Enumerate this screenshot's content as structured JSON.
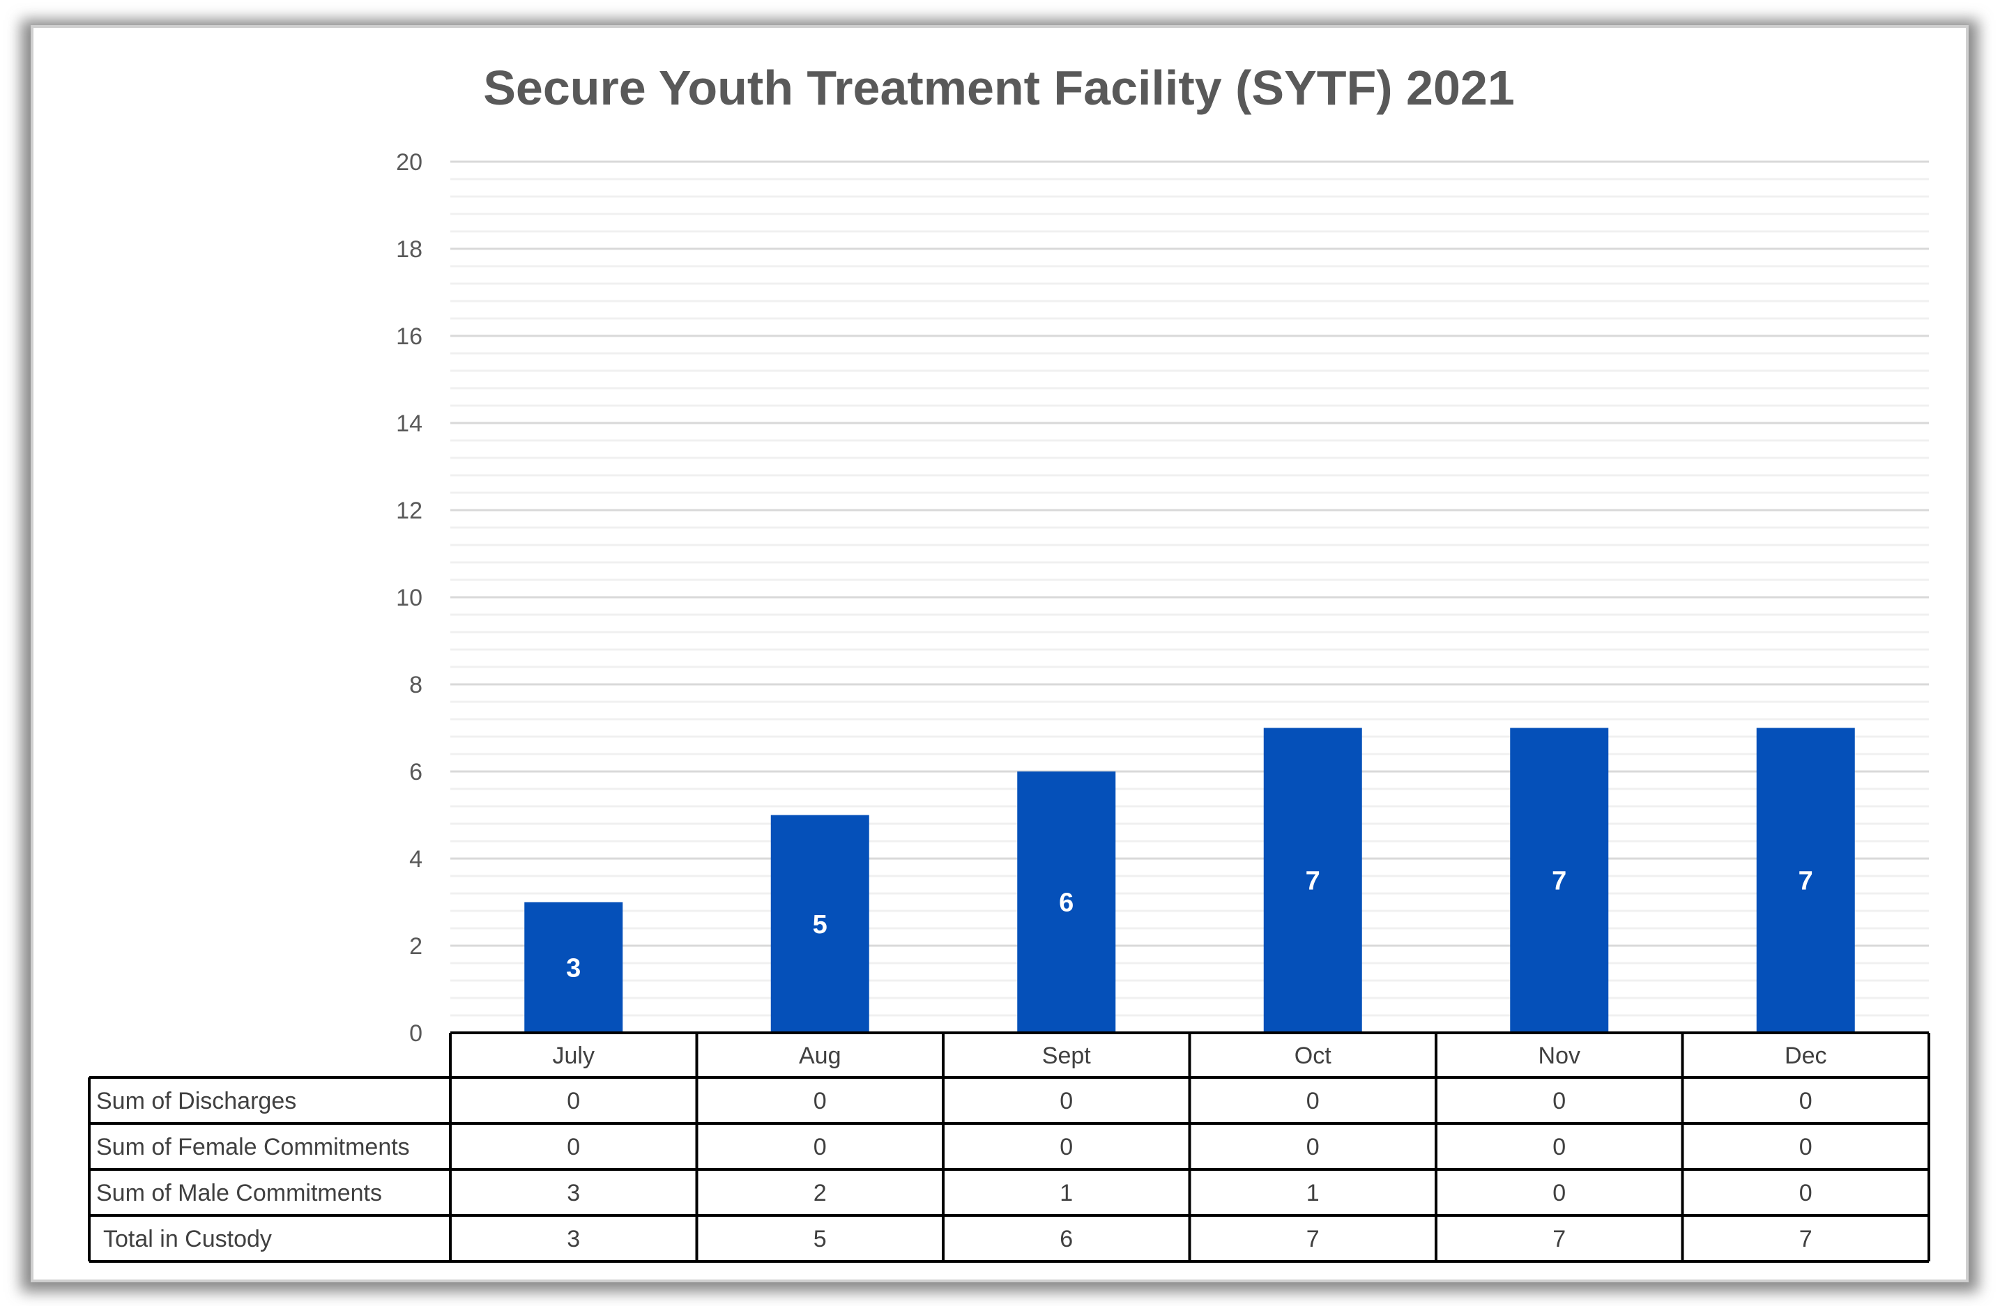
{
  "chart_data": {
    "type": "bar",
    "title": "Secure Youth Treatment Facility (SYTF) 2021",
    "categories": [
      "July",
      "Aug",
      "Sept",
      "Oct",
      "Nov",
      "Dec"
    ],
    "values": [
      3,
      5,
      6,
      7,
      7,
      7
    ],
    "ylim": [
      0,
      20
    ],
    "yticks": [
      "0",
      "2",
      "4",
      "6",
      "8",
      "10",
      "12",
      "14",
      "16",
      "18",
      "20"
    ],
    "grid": true,
    "bar_color": "#0550b9",
    "data_labels": true,
    "table": {
      "rows": [
        {
          "label": "Sum of Discharges",
          "values": [
            "0",
            "0",
            "0",
            "0",
            "0",
            "0"
          ]
        },
        {
          "label": "Sum of Female Commitments",
          "values": [
            "0",
            "0",
            "0",
            "0",
            "0",
            "0"
          ]
        },
        {
          "label": "Sum of Male Commitments",
          "values": [
            "3",
            "2",
            "1",
            "1",
            "0",
            "0"
          ]
        },
        {
          "label": "Total in Custody",
          "values": [
            "3",
            "5",
            "6",
            "7",
            "7",
            "7"
          ]
        }
      ]
    }
  }
}
